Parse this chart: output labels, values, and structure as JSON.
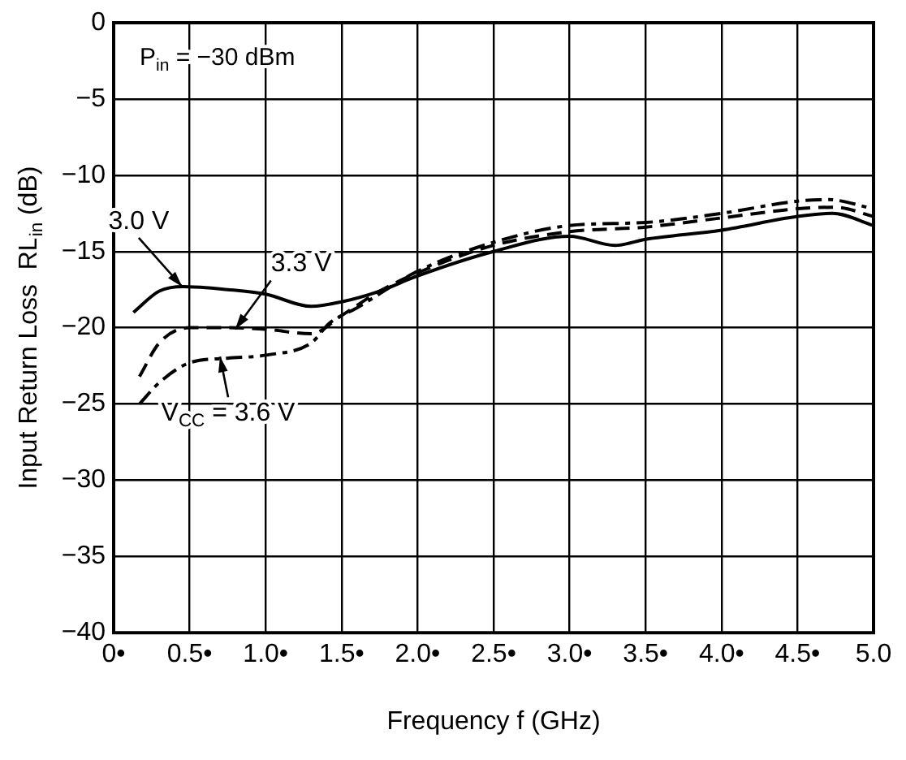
{
  "chart_data": {
    "type": "line",
    "xlabel": "Frequency f (GHz)",
    "ylabel": "Input Return Loss  RL$_{in}$ (dB)",
    "xlim": [
      0,
      5
    ],
    "ylim": [
      -40,
      0
    ],
    "xticks": [
      {
        "value": 0,
        "label": "0•"
      },
      {
        "value": 0.5,
        "label": "0.5•"
      },
      {
        "value": 1,
        "label": "1.0•"
      },
      {
        "value": 1.5,
        "label": "1.5•"
      },
      {
        "value": 2,
        "label": "2.0•"
      },
      {
        "value": 2.5,
        "label": "2.5•"
      },
      {
        "value": 3,
        "label": "3.0•"
      },
      {
        "value": 3.5,
        "label": "3.5•"
      },
      {
        "value": 4,
        "label": "4.0•"
      },
      {
        "value": 4.5,
        "label": "4.5•"
      },
      {
        "value": 5,
        "label": "5.0"
      }
    ],
    "yticks": [
      {
        "value": -40,
        "label": "−40"
      },
      {
        "value": -35,
        "label": "−35"
      },
      {
        "value": -30,
        "label": "−30"
      },
      {
        "value": -25,
        "label": "−25"
      },
      {
        "value": -20,
        "label": "−20"
      },
      {
        "value": -15,
        "label": "−15"
      },
      {
        "value": -10,
        "label": "−10"
      },
      {
        "value": -5,
        "label": "−5"
      },
      0
    ],
    "grid": true,
    "legend": false,
    "marker": "none",
    "series": [
      {
        "color": "#000000",
        "line_style": "solid",
        "x": [
          0.13,
          0.3,
          0.46,
          0.75,
          1.0,
          1.3,
          1.5,
          1.75,
          2.0,
          2.5,
          3.0,
          3.3,
          3.5,
          4.0,
          4.5,
          4.73,
          5.0
        ],
        "values": [
          -19.0,
          -17.6,
          -17.3,
          -17.5,
          -17.8,
          -18.6,
          -18.3,
          -17.6,
          -16.6,
          -15.0,
          -14.0,
          -14.6,
          -14.2,
          -13.6,
          -12.7,
          -12.5,
          -13.3
        ]
      },
      {
        "color": "#000000",
        "line_style": "dashed",
        "x": [
          0.17,
          0.3,
          0.5,
          0.75,
          1.0,
          1.3,
          1.5,
          1.75,
          2.0,
          2.5,
          3.0,
          3.5,
          4.0,
          4.5,
          4.75,
          5.0
        ],
        "values": [
          -23.2,
          -21.0,
          -20.0,
          -20.0,
          -20.1,
          -20.4,
          -19.2,
          -17.6,
          -16.4,
          -14.6,
          -13.7,
          -13.4,
          -12.8,
          -12.2,
          -12.1,
          -12.7
        ]
      },
      {
        "color": "#000000",
        "line_style": "dashed",
        "x": [
          0.17,
          0.3,
          0.5,
          0.75,
          1.0,
          1.3,
          1.42,
          1.6,
          2.0,
          2.5,
          3.0,
          3.5,
          4.0,
          4.5,
          4.7,
          5.0
        ],
        "values": [
          -25.0,
          -23.6,
          -22.3,
          -22.0,
          -21.8,
          -21.0,
          -19.7,
          -18.7,
          -16.3,
          -14.4,
          -13.3,
          -13.1,
          -12.5,
          -11.7,
          -11.6,
          -12.2
        ]
      }
    ],
    "annotations": [
      "P$_{in}$ = −30 dBm",
      {
        "text": "3.0 V",
        "x": 0.45,
        "y": -17.3
      },
      {
        "text": "3.3 V",
        "x": 0.8,
        "y": -20.1
      },
      {
        "text": "V$_{CC}$ = 3.6 V",
        "x": 0.7,
        "y": -21.9
      }
    ]
  }
}
